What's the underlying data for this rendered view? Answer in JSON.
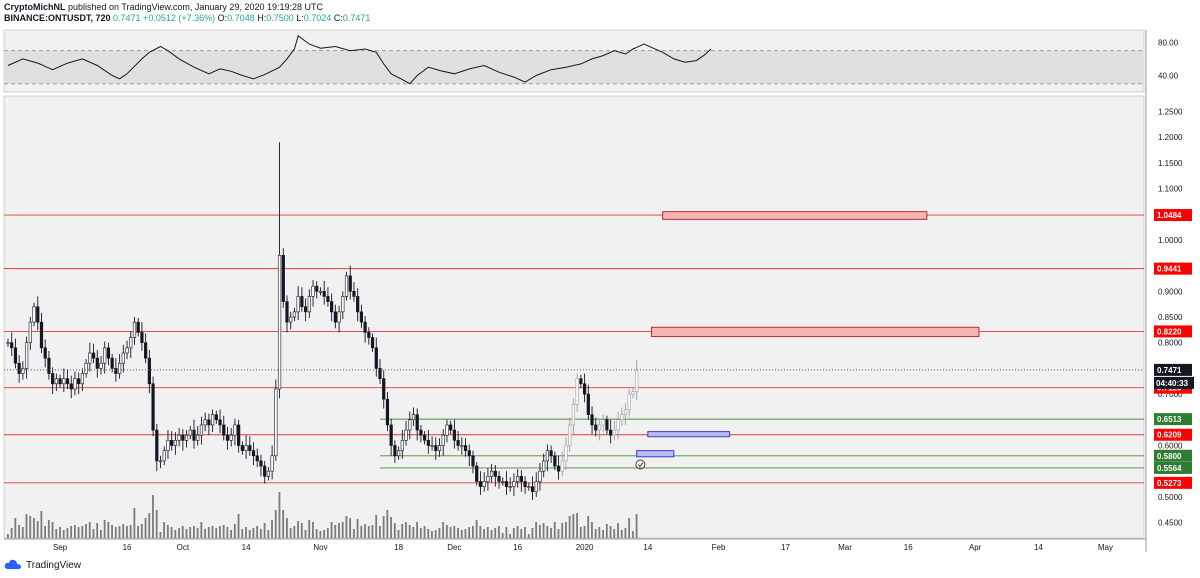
{
  "header": {
    "line1_author": "CryptoMichNL",
    "line1_rest": " published on TradingView.com, January 29, 2020 19:19:28 UTC",
    "symbol": "BINANCE:ONTUSDT, 720",
    "last": "0.7471",
    "change": "+0.0512 (+7.36%)",
    "o_label": "O:",
    "o": "0.7048",
    "h_label": "H:",
    "h": "0.7500",
    "l_label": "L:",
    "l": "0.7024",
    "c_label": "C:",
    "c": "0.7471"
  },
  "footer": {
    "brand": "TradingView"
  },
  "colors": {
    "background": "#f1f1f1",
    "hline_red": "#e53935",
    "hline_green": "#4c8a3a",
    "box_red_fill": "#f4b6b4",
    "box_blue_fill": "#b9b9f3",
    "tag_red": "#ff0000",
    "tag_green": "#2e7d32",
    "tag_dark": "#131722",
    "candle": "#131722"
  },
  "chart_data": [
    {
      "type": "line",
      "panel": "RSI",
      "y_ticks": [
        "80.00",
        "40.00"
      ],
      "ylim": [
        20,
        95
      ],
      "band": [
        30,
        70
      ],
      "points": [
        [
          0,
          52
        ],
        [
          4,
          60
        ],
        [
          8,
          55
        ],
        [
          12,
          47
        ],
        [
          16,
          55
        ],
        [
          20,
          60
        ],
        [
          24,
          52
        ],
        [
          28,
          40
        ],
        [
          30,
          36
        ],
        [
          32,
          42
        ],
        [
          36,
          60
        ],
        [
          38,
          68
        ],
        [
          41,
          75
        ],
        [
          43,
          70
        ],
        [
          46,
          60
        ],
        [
          50,
          50
        ],
        [
          54,
          42
        ],
        [
          57,
          48
        ],
        [
          60,
          45
        ],
        [
          63,
          40
        ],
        [
          66,
          36
        ],
        [
          69,
          41
        ],
        [
          73,
          50
        ],
        [
          75,
          60
        ],
        [
          77,
          72
        ],
        [
          78,
          88
        ],
        [
          81,
          78
        ],
        [
          84,
          73
        ],
        [
          88,
          75
        ],
        [
          92,
          70
        ],
        [
          96,
          72
        ],
        [
          99,
          68
        ],
        [
          101,
          54
        ],
        [
          103,
          42
        ],
        [
          106,
          35
        ],
        [
          108,
          30
        ],
        [
          110,
          40
        ],
        [
          113,
          50
        ],
        [
          116,
          46
        ],
        [
          120,
          42
        ],
        [
          124,
          48
        ],
        [
          128,
          52
        ],
        [
          132,
          44
        ],
        [
          136,
          38
        ],
        [
          139,
          32
        ],
        [
          142,
          40
        ],
        [
          146,
          47
        ],
        [
          150,
          50
        ],
        [
          154,
          54
        ],
        [
          157,
          60
        ],
        [
          160,
          64
        ],
        [
          163,
          70
        ],
        [
          166,
          66
        ],
        [
          168,
          72
        ],
        [
          171,
          78
        ],
        [
          173,
          74
        ],
        [
          176,
          68
        ],
        [
          179,
          60
        ],
        [
          182,
          56
        ],
        [
          185,
          58
        ],
        [
          187,
          64
        ],
        [
          189,
          72
        ]
      ]
    },
    {
      "type": "candlestick",
      "panel": "price",
      "ylim": [
        0.42,
        1.28
      ],
      "y_ticks": [
        "1.2500",
        "1.2000",
        "1.1500",
        "1.1000",
        "1.0500",
        "1.0000",
        "0.9500",
        "0.9000",
        "0.8500",
        "0.8000",
        "0.7500",
        "0.7000",
        "0.6500",
        "0.6000",
        "0.5500",
        "0.5000",
        "0.4500"
      ],
      "x_ticks": [
        {
          "label": "Sep",
          "i": 14
        },
        {
          "label": "16",
          "i": 32
        },
        {
          "label": "Oct",
          "i": 47
        },
        {
          "label": "14",
          "i": 64
        },
        {
          "label": "Nov",
          "i": 84
        },
        {
          "label": "18",
          "i": 105
        },
        {
          "label": "Dec",
          "i": 120
        },
        {
          "label": "16",
          "i": 137
        },
        {
          "label": "2020",
          "i": 155
        },
        {
          "label": "14",
          "i": 172
        },
        {
          "label": "Feb",
          "i": 191
        },
        {
          "label": "17",
          "i": 209
        },
        {
          "label": "Mar",
          "i": 225
        },
        {
          "label": "16",
          "i": 242
        },
        {
          "label": "Apr",
          "i": 260
        },
        {
          "label": "14",
          "i": 277
        },
        {
          "label": "May",
          "i": 295
        }
      ],
      "closes": [
        0.8,
        0.79,
        0.76,
        0.74,
        0.75,
        0.8,
        0.84,
        0.87,
        0.84,
        0.79,
        0.77,
        0.74,
        0.72,
        0.73,
        0.72,
        0.73,
        0.72,
        0.71,
        0.73,
        0.72,
        0.74,
        0.76,
        0.78,
        0.77,
        0.75,
        0.76,
        0.79,
        0.77,
        0.75,
        0.74,
        0.76,
        0.78,
        0.79,
        0.81,
        0.84,
        0.82,
        0.8,
        0.77,
        0.72,
        0.63,
        0.57,
        0.57,
        0.59,
        0.61,
        0.6,
        0.61,
        0.62,
        0.61,
        0.62,
        0.63,
        0.61,
        0.62,
        0.64,
        0.65,
        0.64,
        0.66,
        0.65,
        0.64,
        0.62,
        0.61,
        0.62,
        0.64,
        0.6,
        0.59,
        0.6,
        0.59,
        0.58,
        0.57,
        0.56,
        0.54,
        0.55,
        0.58,
        0.71,
        0.97,
        0.88,
        0.84,
        0.85,
        0.86,
        0.89,
        0.87,
        0.86,
        0.89,
        0.91,
        0.9,
        0.9,
        0.89,
        0.88,
        0.86,
        0.84,
        0.86,
        0.89,
        0.93,
        0.9,
        0.89,
        0.86,
        0.84,
        0.82,
        0.81,
        0.79,
        0.75,
        0.73,
        0.69,
        0.64,
        0.6,
        0.58,
        0.59,
        0.61,
        0.63,
        0.65,
        0.66,
        0.63,
        0.62,
        0.61,
        0.6,
        0.6,
        0.59,
        0.6,
        0.62,
        0.64,
        0.63,
        0.61,
        0.6,
        0.6,
        0.59,
        0.58,
        0.56,
        0.53,
        0.52,
        0.53,
        0.54,
        0.55,
        0.54,
        0.53,
        0.53,
        0.52,
        0.52,
        0.53,
        0.54,
        0.53,
        0.52,
        0.52,
        0.51,
        0.53,
        0.55,
        0.57,
        0.59,
        0.58,
        0.56,
        0.55,
        0.57,
        0.6,
        0.64,
        0.68,
        0.73,
        0.72,
        0.7,
        0.66,
        0.64,
        0.63,
        0.64,
        0.65,
        0.63,
        0.62,
        0.63,
        0.65,
        0.66,
        0.67,
        0.7,
        0.7048,
        0.7471
      ],
      "volume_note": "volume bars at bottom",
      "horizontal_lines": [
        {
          "value": 1.0484,
          "label": "1.0484",
          "color": "red"
        },
        {
          "value": 0.9441,
          "label": "0.9441",
          "color": "red"
        },
        {
          "value": 0.822,
          "label": "0.8220",
          "color": "red"
        },
        {
          "value": 0.7125,
          "label": "0.7125",
          "color": "red"
        },
        {
          "value": 0.6513,
          "label": "0.6513",
          "color": "green"
        },
        {
          "value": 0.6209,
          "label": "0.6209",
          "color": "red"
        },
        {
          "value": 0.58,
          "label": "0.5800",
          "color": "green"
        },
        {
          "value": 0.5564,
          "label": "0.5564",
          "color": "green"
        },
        {
          "value": 0.5273,
          "label": "0.5273",
          "color": "red"
        }
      ],
      "last_price": {
        "value": 0.7471,
        "label": "0.7471",
        "countdown": "04:40:33"
      },
      "boxes": [
        {
          "name": "resistance-box-top",
          "i0": 176,
          "i1": 247,
          "y0": 1.04,
          "y1": 1.055,
          "color": "red"
        },
        {
          "name": "resistance-box-mid",
          "i0": 173,
          "i1": 261,
          "y0": 0.812,
          "y1": 0.83,
          "color": "red"
        },
        {
          "name": "support-box-upper",
          "i0": 172,
          "i1": 194,
          "y0": 0.617,
          "y1": 0.627,
          "color": "blue"
        },
        {
          "name": "support-box-lower",
          "i0": 169,
          "i1": 179,
          "y0": 0.578,
          "y1": 0.59,
          "color": "blue"
        }
      ]
    }
  ]
}
